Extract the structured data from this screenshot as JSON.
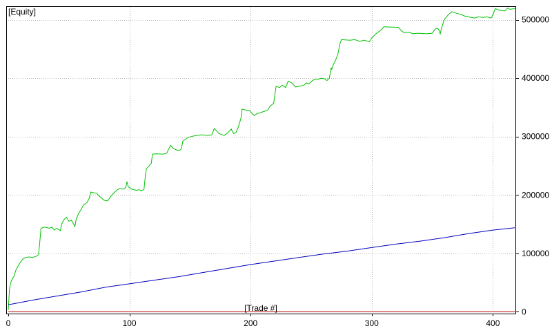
{
  "chart_data": {
    "type": "line",
    "title": "[Equity]",
    "xlabel": "[Trade #]",
    "ylabel": "",
    "xlim": [
      0,
      418
    ],
    "ylim": [
      -3000,
      522000
    ],
    "x_ticks": [
      0,
      100,
      200,
      300,
      400
    ],
    "y_ticks": [
      0,
      100000,
      200000,
      300000,
      400000,
      500000
    ],
    "y_axis_side": "right",
    "grid": true,
    "legend": "none",
    "series": [
      {
        "color": "#00c000",
        "style": "step",
        "points": [
          [
            0,
            3000
          ],
          [
            1,
            40000
          ],
          [
            2,
            50000
          ],
          [
            3,
            55000
          ],
          [
            5,
            62000
          ],
          [
            6,
            70000
          ],
          [
            8,
            78000
          ],
          [
            10,
            85000
          ],
          [
            12,
            90000
          ],
          [
            14,
            93000
          ],
          [
            17,
            94000
          ],
          [
            20,
            93000
          ],
          [
            23,
            95000
          ],
          [
            25,
            98000
          ],
          [
            26,
            120000
          ],
          [
            27,
            143000
          ],
          [
            30,
            145000
          ],
          [
            34,
            143000
          ],
          [
            36,
            145000
          ],
          [
            38,
            140000
          ],
          [
            40,
            143000
          ],
          [
            43,
            139000
          ],
          [
            44,
            150000
          ],
          [
            46,
            158000
          ],
          [
            48,
            162000
          ],
          [
            50,
            155000
          ],
          [
            52,
            157000
          ],
          [
            54,
            150000
          ],
          [
            55,
            146000
          ],
          [
            56,
            158000
          ],
          [
            58,
            168000
          ],
          [
            60,
            175000
          ],
          [
            62,
            183000
          ],
          [
            65,
            187000
          ],
          [
            67,
            195000
          ],
          [
            68,
            205000
          ],
          [
            70,
            204000
          ],
          [
            73,
            203000
          ],
          [
            75,
            198000
          ],
          [
            77,
            195000
          ],
          [
            79,
            191000
          ],
          [
            82,
            190000
          ],
          [
            84,
            196000
          ],
          [
            86,
            201000
          ],
          [
            88,
            205000
          ],
          [
            90,
            209000
          ],
          [
            92,
            211000
          ],
          [
            95,
            210000
          ],
          [
            97,
            213000
          ],
          [
            98,
            223000
          ],
          [
            99,
            214000
          ],
          [
            102,
            210000
          ],
          [
            106,
            208000
          ],
          [
            108,
            209000
          ],
          [
            110,
            207000
          ],
          [
            112,
            210000
          ],
          [
            113,
            230000
          ],
          [
            114,
            245000
          ],
          [
            118,
            254000
          ],
          [
            119,
            270000
          ],
          [
            122,
            270500
          ],
          [
            128,
            270000
          ],
          [
            131,
            272000
          ],
          [
            132,
            277000
          ],
          [
            134,
            285000
          ],
          [
            136,
            280000
          ],
          [
            140,
            276000
          ],
          [
            142,
            277000
          ],
          [
            143,
            280000
          ],
          [
            144,
            292000
          ],
          [
            148,
            298000
          ],
          [
            151,
            300000
          ],
          [
            155,
            302000
          ],
          [
            160,
            303000
          ],
          [
            165,
            302000
          ],
          [
            168,
            303000
          ],
          [
            170,
            314000
          ],
          [
            174,
            305000
          ],
          [
            178,
            302000
          ],
          [
            181,
            306000
          ],
          [
            184,
            313000
          ],
          [
            186,
            305000
          ],
          [
            188,
            307000
          ],
          [
            190,
            317000
          ],
          [
            192,
            331000
          ],
          [
            193,
            347000
          ],
          [
            197,
            345000
          ],
          [
            199,
            345000
          ],
          [
            201,
            340000
          ],
          [
            203,
            336000
          ],
          [
            205,
            339000
          ],
          [
            208,
            341000
          ],
          [
            211,
            343000
          ],
          [
            214,
            345000
          ],
          [
            216,
            352000
          ],
          [
            219,
            357000
          ],
          [
            221,
            386000
          ],
          [
            224,
            384000
          ],
          [
            226,
            388000
          ],
          [
            229,
            384000
          ],
          [
            231,
            395000
          ],
          [
            233,
            393000
          ],
          [
            235,
            390000
          ],
          [
            237,
            385000
          ],
          [
            240,
            386000
          ],
          [
            244,
            388000
          ],
          [
            246,
            392000
          ],
          [
            248,
            390000
          ],
          [
            251,
            396000
          ],
          [
            253,
            398000
          ],
          [
            256,
            398000
          ],
          [
            258,
            400000
          ],
          [
            261,
            399000
          ],
          [
            263,
            396000
          ],
          [
            265,
            400000
          ],
          [
            266,
            412000
          ],
          [
            266.5,
            418000
          ],
          [
            267,
            415000
          ],
          [
            268,
            422000
          ],
          [
            270,
            430000
          ],
          [
            272,
            441000
          ],
          [
            274,
            461000
          ],
          [
            275,
            466000
          ],
          [
            282,
            465000
          ],
          [
            286,
            466000
          ],
          [
            290,
            463000
          ],
          [
            294,
            465000
          ],
          [
            298,
            462000
          ],
          [
            300,
            469000
          ],
          [
            304,
            477000
          ],
          [
            308,
            483000
          ],
          [
            310,
            488000
          ],
          [
            322,
            487000
          ],
          [
            325,
            480000
          ],
          [
            327,
            478000
          ],
          [
            330,
            479000
          ],
          [
            334,
            476000
          ],
          [
            338,
            477000
          ],
          [
            345,
            476000
          ],
          [
            350,
            477000
          ],
          [
            352,
            483000
          ],
          [
            353,
            485000
          ],
          [
            355,
            484000
          ],
          [
            356,
            480000
          ],
          [
            356.5,
            475000
          ],
          [
            357,
            481000
          ],
          [
            359,
            495000
          ],
          [
            360,
            501000
          ],
          [
            363,
            508000
          ],
          [
            366,
            514000
          ],
          [
            370,
            511000
          ],
          [
            374,
            509000
          ],
          [
            377,
            506000
          ],
          [
            380,
            505000
          ],
          [
            382,
            504000
          ],
          [
            385,
            503000
          ],
          [
            388,
            505000
          ],
          [
            392,
            504000
          ],
          [
            395,
            505000
          ],
          [
            398,
            503000
          ],
          [
            399,
            504000
          ],
          [
            400,
            509000
          ],
          [
            402,
            519000
          ],
          [
            406,
            516000
          ],
          [
            410,
            515000
          ],
          [
            412,
            520000
          ],
          [
            414,
            518000
          ],
          [
            418,
            519000
          ]
        ]
      },
      {
        "color": "#0000c0",
        "style": "line",
        "points": [
          [
            0,
            12000
          ],
          [
            20,
            20000
          ],
          [
            40,
            27000
          ],
          [
            60,
            34000
          ],
          [
            80,
            42000
          ],
          [
            100,
            48000
          ],
          [
            120,
            54000
          ],
          [
            140,
            60000
          ],
          [
            160,
            67000
          ],
          [
            180,
            74000
          ],
          [
            200,
            81000
          ],
          [
            220,
            87000
          ],
          [
            240,
            93000
          ],
          [
            260,
            99000
          ],
          [
            280,
            104000
          ],
          [
            300,
            110000
          ],
          [
            320,
            116000
          ],
          [
            340,
            121000
          ],
          [
            360,
            127000
          ],
          [
            380,
            134000
          ],
          [
            400,
            140000
          ],
          [
            418,
            144000
          ]
        ]
      },
      {
        "color": "#c00000",
        "style": "line",
        "points": [
          [
            0,
            0
          ],
          [
            418,
            0
          ]
        ]
      }
    ]
  }
}
